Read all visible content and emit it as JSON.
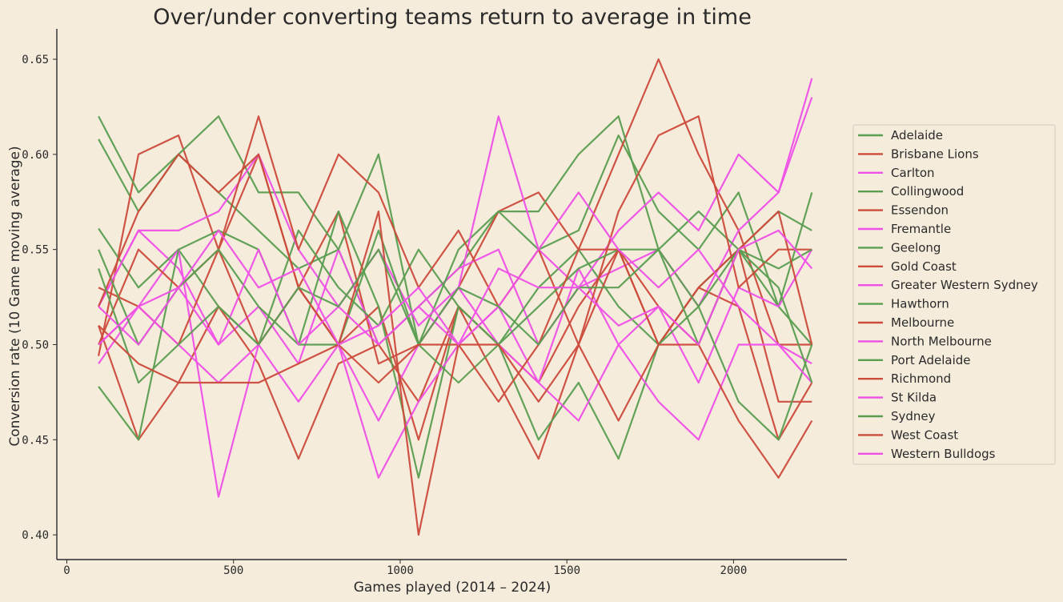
{
  "chart_data": {
    "type": "line",
    "title": "Over/under converting teams return to average in time",
    "xlabel": "Games played (2014 – 2024)",
    "ylabel": "Conversion rate (10 Game moving average)",
    "xlim": [
      -30,
      2340
    ],
    "ylim": [
      0.387,
      0.666
    ],
    "xticks": [
      0,
      500,
      1000,
      1500,
      2000
    ],
    "xtick_labels": [
      "0",
      "500",
      "1000",
      "1500",
      "2000"
    ],
    "yticks": [
      0.4,
      0.45,
      0.5,
      0.55,
      0.6,
      0.65
    ],
    "ytick_labels": [
      "0.40",
      "0.45",
      "0.50",
      "0.55",
      "0.60",
      "0.65"
    ],
    "grid": false,
    "legend_position": "right",
    "colors": {
      "green": "#5a9e50",
      "red": "#cc4b3b",
      "pink": "#ef50e6",
      "axis": "#2a2a2a",
      "background": "#f5ecdc"
    },
    "x": [
      95,
      215,
      335,
      455,
      575,
      695,
      815,
      935,
      1055,
      1175,
      1295,
      1415,
      1535,
      1655,
      1775,
      1895,
      2015,
      2135,
      2235
    ],
    "series": [
      {
        "name": "Adelaide",
        "color": "green",
        "values": [
          0.608,
          0.57,
          0.6,
          0.58,
          0.56,
          0.54,
          0.55,
          0.5,
          0.52,
          0.54,
          0.57,
          0.55,
          0.56,
          0.61,
          0.57,
          0.55,
          0.58,
          0.52,
          0.58
        ]
      },
      {
        "name": "Brisbane Lions",
        "color": "red",
        "values": [
          0.494,
          0.6,
          0.61,
          0.55,
          0.6,
          0.53,
          0.57,
          0.49,
          0.5,
          0.53,
          0.57,
          0.58,
          0.55,
          0.6,
          0.65,
          0.6,
          0.56,
          0.5,
          0.5
        ]
      },
      {
        "name": "Carlton",
        "color": "pink",
        "values": [
          0.52,
          0.56,
          0.54,
          0.5,
          0.52,
          0.49,
          0.55,
          0.5,
          0.52,
          0.54,
          0.55,
          0.5,
          0.53,
          0.54,
          0.55,
          0.52,
          0.56,
          0.58,
          0.64
        ]
      },
      {
        "name": "Collingwood",
        "color": "green",
        "values": [
          0.561,
          0.53,
          0.55,
          0.52,
          0.5,
          0.56,
          0.53,
          0.51,
          0.55,
          0.52,
          0.5,
          0.53,
          0.55,
          0.52,
          0.5,
          0.53,
          0.55,
          0.52,
          0.5
        ]
      },
      {
        "name": "Essendon",
        "color": "red",
        "values": [
          0.51,
          0.45,
          0.48,
          0.52,
          0.49,
          0.44,
          0.49,
          0.5,
          0.47,
          0.52,
          0.5,
          0.48,
          0.52,
          0.55,
          0.5,
          0.53,
          0.55,
          0.47,
          0.47
        ]
      },
      {
        "name": "Fremantle",
        "color": "pink",
        "values": [
          0.5,
          0.52,
          0.55,
          0.42,
          0.5,
          0.53,
          0.5,
          0.46,
          0.5,
          0.53,
          0.5,
          0.48,
          0.54,
          0.5,
          0.52,
          0.48,
          0.53,
          0.52,
          0.55
        ]
      },
      {
        "name": "Geelong",
        "color": "green",
        "values": [
          0.62,
          0.58,
          0.6,
          0.62,
          0.58,
          0.58,
          0.55,
          0.6,
          0.5,
          0.55,
          0.57,
          0.57,
          0.6,
          0.62,
          0.55,
          0.57,
          0.55,
          0.57,
          0.56
        ]
      },
      {
        "name": "Gold Coast",
        "color": "red",
        "values": [
          0.53,
          0.52,
          0.5,
          0.55,
          0.5,
          0.53,
          0.5,
          0.52,
          0.45,
          0.52,
          0.48,
          0.44,
          0.5,
          0.55,
          0.5,
          0.53,
          0.52,
          0.45,
          0.48
        ]
      },
      {
        "name": "Greater Western Sydney",
        "color": "pink",
        "values": [
          0.52,
          0.56,
          0.56,
          0.57,
          0.6,
          0.55,
          0.52,
          0.55,
          0.51,
          0.53,
          0.62,
          0.55,
          0.53,
          0.56,
          0.58,
          0.56,
          0.6,
          0.58,
          0.63
        ]
      },
      {
        "name": "Hawthorn",
        "color": "green",
        "values": [
          0.478,
          0.45,
          0.55,
          0.56,
          0.55,
          0.5,
          0.57,
          0.52,
          0.43,
          0.52,
          0.5,
          0.45,
          0.48,
          0.44,
          0.5,
          0.52,
          0.47,
          0.45,
          0.5
        ]
      },
      {
        "name": "Melbourne",
        "color": "red",
        "values": [
          0.5,
          0.55,
          0.53,
          0.55,
          0.62,
          0.55,
          0.6,
          0.58,
          0.53,
          0.56,
          0.52,
          0.55,
          0.5,
          0.57,
          0.61,
          0.62,
          0.53,
          0.55,
          0.55
        ]
      },
      {
        "name": "North Melbourne",
        "color": "pink",
        "values": [
          0.49,
          0.52,
          0.5,
          0.48,
          0.5,
          0.47,
          0.5,
          0.43,
          0.47,
          0.5,
          0.52,
          0.48,
          0.46,
          0.5,
          0.47,
          0.45,
          0.5,
          0.5,
          0.48
        ]
      },
      {
        "name": "Port Adelaide",
        "color": "green",
        "values": [
          0.55,
          0.5,
          0.53,
          0.55,
          0.52,
          0.5,
          0.5,
          0.56,
          0.5,
          0.48,
          0.5,
          0.52,
          0.54,
          0.55,
          0.55,
          0.52,
          0.55,
          0.54,
          0.55
        ]
      },
      {
        "name": "Richmond",
        "color": "red",
        "values": [
          0.52,
          0.57,
          0.6,
          0.58,
          0.6,
          0.53,
          0.5,
          0.57,
          0.4,
          0.5,
          0.47,
          0.5,
          0.55,
          0.55,
          0.52,
          0.5,
          0.55,
          0.57,
          0.5
        ]
      },
      {
        "name": "St Kilda",
        "color": "pink",
        "values": [
          0.52,
          0.5,
          0.53,
          0.5,
          0.55,
          0.5,
          0.52,
          0.5,
          0.52,
          0.5,
          0.52,
          0.55,
          0.58,
          0.55,
          0.53,
          0.55,
          0.52,
          0.5,
          0.49
        ]
      },
      {
        "name": "Sydney",
        "color": "green",
        "values": [
          0.54,
          0.48,
          0.5,
          0.52,
          0.5,
          0.53,
          0.52,
          0.55,
          0.5,
          0.53,
          0.52,
          0.5,
          0.53,
          0.53,
          0.55,
          0.5,
          0.55,
          0.53,
          0.48
        ]
      },
      {
        "name": "West Coast",
        "color": "red",
        "values": [
          0.51,
          0.49,
          0.48,
          0.48,
          0.48,
          0.49,
          0.5,
          0.48,
          0.5,
          0.5,
          0.5,
          0.47,
          0.5,
          0.46,
          0.5,
          0.5,
          0.46,
          0.43,
          0.46
        ]
      },
      {
        "name": "Western Bulldogs",
        "color": "pink",
        "values": [
          0.5,
          0.52,
          0.53,
          0.56,
          0.53,
          0.54,
          0.5,
          0.51,
          0.53,
          0.5,
          0.54,
          0.53,
          0.53,
          0.51,
          0.52,
          0.5,
          0.55,
          0.56,
          0.54
        ]
      }
    ]
  }
}
